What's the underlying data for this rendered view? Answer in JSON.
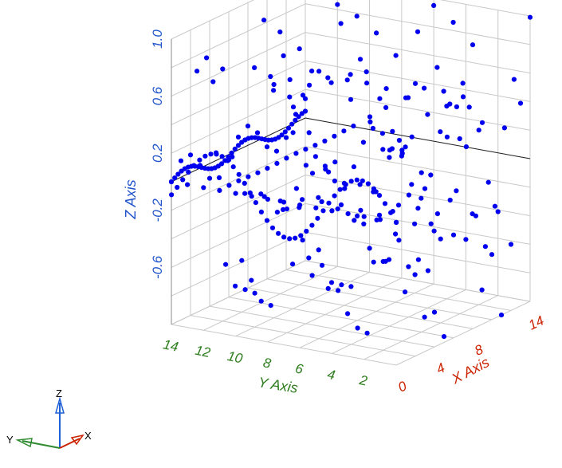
{
  "chart_data": {
    "type": "scatter",
    "subtype": "3d-scatter",
    "title": "",
    "xlabel": "X Axis",
    "ylabel": "Y Axis",
    "zlabel": "Z Axis",
    "x_ticks": [
      "0",
      "4",
      "8",
      "14"
    ],
    "y_ticks": [
      "14",
      "12",
      "10",
      "8",
      "6",
      "4",
      "2"
    ],
    "z_ticks": [
      "1.0",
      "0.6",
      "0.2",
      "-0.2",
      "-0.6"
    ],
    "xlim": [
      0,
      14
    ],
    "ylim": [
      0,
      14
    ],
    "zlim": [
      -1.0,
      1.0
    ],
    "grid": true,
    "legend": "none",
    "marker_color": "#0000ee",
    "x_axis_color": "#cc2200",
    "y_axis_color": "#2e7d1e",
    "z_axis_color": "#2255cc",
    "point_pattern": "z = sin(x) * cos(y) sampled on a 0..14 x 0..14 grid; plus the dense curve along y=14 and x=0",
    "series": [
      {
        "grid_step": 1,
        "x": [
          0,
          14
        ],
        "y": [
          0,
          14
        ],
        "function": "sin(x)*cos(y)"
      }
    ]
  },
  "triad": {
    "x_label": "X",
    "y_label": "Y",
    "z_label": "Z"
  }
}
